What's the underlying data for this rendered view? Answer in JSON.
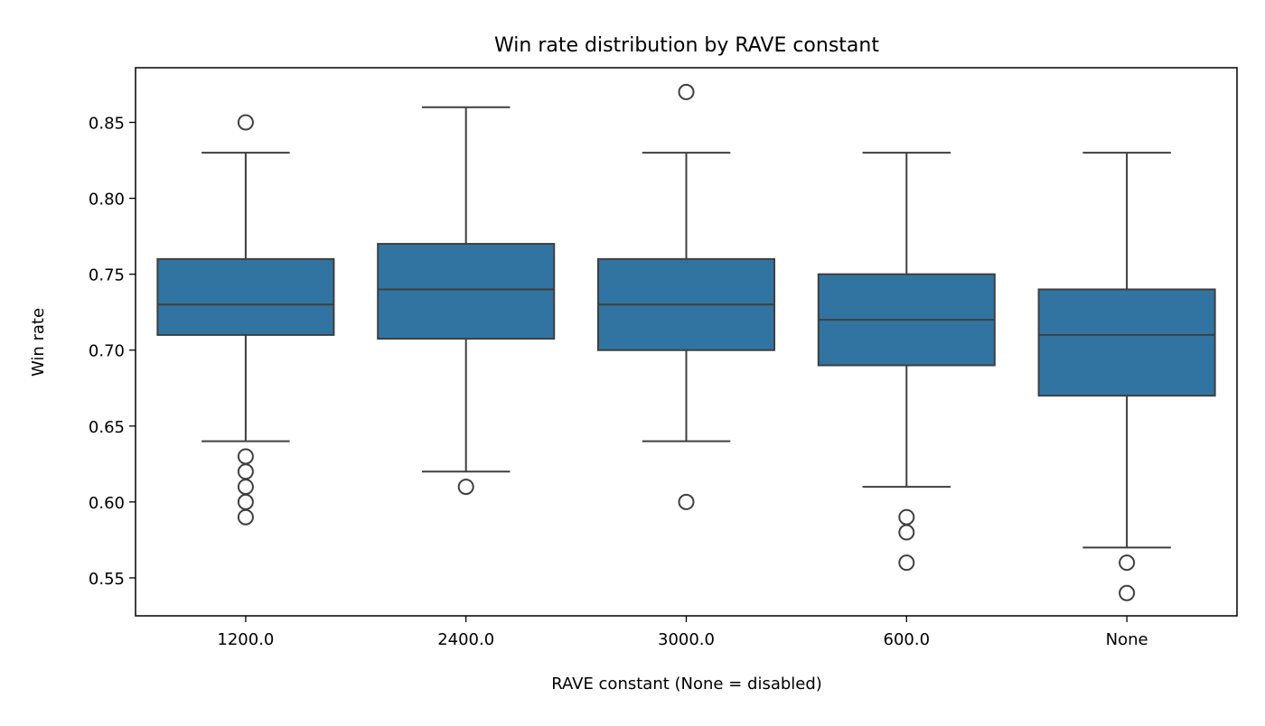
{
  "chart_data": {
    "type": "box",
    "title": "Win rate distribution by RAVE constant",
    "xlabel": "RAVE constant (None = disabled)",
    "ylabel": "Win rate",
    "ylim": [
      0.525,
      0.886
    ],
    "yticks": [
      "0.55",
      "0.60",
      "0.65",
      "0.70",
      "0.75",
      "0.80",
      "0.85"
    ],
    "grid": false,
    "box_color": "#3274a1",
    "line_color": "#3f3f3f",
    "categories": [
      "1200.0",
      "2400.0",
      "3000.0",
      "600.0",
      "None"
    ],
    "boxes": [
      {
        "whisker_low": 0.64,
        "q1": 0.71,
        "median": 0.73,
        "q3": 0.76,
        "whisker_high": 0.83,
        "outliers": [
          0.85,
          0.63,
          0.62,
          0.61,
          0.6,
          0.59
        ]
      },
      {
        "whisker_low": 0.62,
        "q1": 0.7075,
        "median": 0.74,
        "q3": 0.77,
        "whisker_high": 0.86,
        "outliers": [
          0.61
        ]
      },
      {
        "whisker_low": 0.64,
        "q1": 0.7,
        "median": 0.73,
        "q3": 0.76,
        "whisker_high": 0.83,
        "outliers": [
          0.87,
          0.6
        ]
      },
      {
        "whisker_low": 0.61,
        "q1": 0.69,
        "median": 0.72,
        "q3": 0.75,
        "whisker_high": 0.83,
        "outliers": [
          0.59,
          0.58,
          0.56
        ]
      },
      {
        "whisker_low": 0.57,
        "q1": 0.67,
        "median": 0.71,
        "q3": 0.74,
        "whisker_high": 0.83,
        "outliers": [
          0.56,
          0.54
        ]
      }
    ]
  }
}
